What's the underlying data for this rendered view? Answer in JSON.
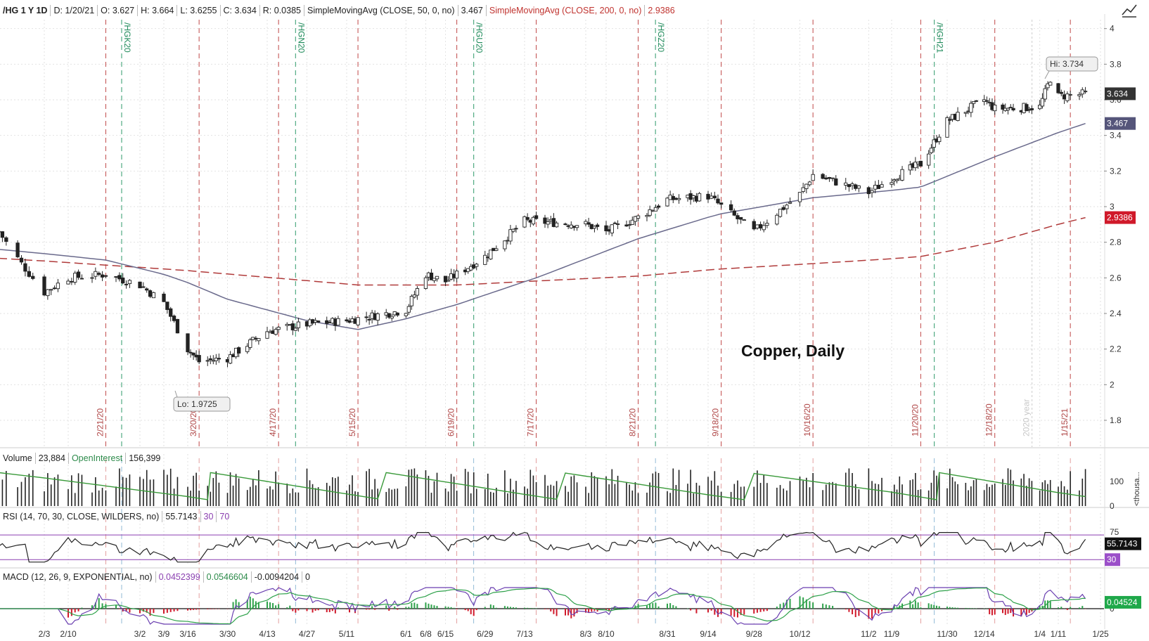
{
  "header": {
    "symbol": "/HG 1 Y 1D",
    "date": "D: 1/20/21",
    "open": "O: 3.627",
    "high": "H: 3.664",
    "low": "L: 3.6255",
    "close": "C: 3.634",
    "range": "R: 0.0385",
    "sma50_label": "SimpleMovingAvg (CLOSE, 50, 0, no)",
    "sma50_value": "3.467",
    "sma200_label": "SimpleMovingAvg (CLOSE, 200, 0, no)",
    "sma200_value": "2.9386"
  },
  "annotation": "Copper, Daily",
  "hi_label": "Hi: 3.734",
  "lo_label": "Lo: 1.9725",
  "year_label": "2020 year",
  "volume_header": {
    "name": "Volume",
    "value": "23,884",
    "oi_name": "OpenInterest",
    "oi_value": "156,399"
  },
  "rsi_header": {
    "name": "RSI (14, 70, 30, CLOSE, WILDERS, no)",
    "value": "55.7143",
    "low": "30",
    "high": "70"
  },
  "macd_header": {
    "name": "MACD (12, 26, 9, EXPONENTIAL, no)",
    "v1": "0.0452399",
    "v2": "0.0546604",
    "v3": "-0.0094204",
    "v4": "0"
  },
  "volume_axis_title": "<thousa...",
  "colors": {
    "up": "#ffffff",
    "down": "#222222",
    "sma50": "#6a6a8c",
    "sma200": "#b03a3a",
    "price_tag": "#333333",
    "sma200_tag": "#d0192a",
    "oi": "#3a9a3a",
    "rsi_line": "#222222",
    "rsi_band": "#8a3fb0",
    "macd_value": "#6a3fb0",
    "macd_avg": "#2ea14a",
    "hist_pos": "#2ea14a",
    "hist_neg": "#d0192a"
  },
  "chart_data": {
    "type": "candlestick",
    "x_ticks": [
      "2/3",
      "2/10",
      "3/2",
      "3/9",
      "3/16",
      "3/30",
      "4/13",
      "4/27",
      "5/11",
      "6/1",
      "6/8",
      "6/15",
      "6/29",
      "7/13",
      "8/3",
      "8/10",
      "8/31",
      "9/14",
      "9/28",
      "10/12",
      "11/2",
      "11/9",
      "11/30",
      "12/14",
      "1/4",
      "1/11",
      "1/25"
    ],
    "y_ticks": [
      "1.8",
      "2",
      "2.2",
      "2.4",
      "2.6",
      "2.8",
      "3",
      "3.2",
      "3.4",
      "3.6",
      "3.8",
      "4"
    ],
    "ylim": [
      1.65,
      4.05
    ],
    "event_lines_red": [
      "2/21/20",
      "3/20/20",
      "4/17/20",
      "5/15/20",
      "6/19/20",
      "7/17/20",
      "8/21/20",
      "9/18/20",
      "10/16/20",
      "11/20/20",
      "12/18/20",
      "1/15/21"
    ],
    "event_lines_green": [
      "/HGK20",
      "/HGN20",
      "/HGU20",
      "/HGZ20",
      "/HGH21"
    ],
    "price_close_waypoints": [
      [
        "1/22",
        2.86
      ],
      [
        "1/28",
        2.68
      ],
      [
        "2/3",
        2.52
      ],
      [
        "2/10",
        2.6
      ],
      [
        "2/21",
        2.62
      ],
      [
        "3/2",
        2.56
      ],
      [
        "3/9",
        2.46
      ],
      [
        "3/16",
        2.2
      ],
      [
        "3/20",
        2.13
      ],
      [
        "3/30",
        2.15
      ],
      [
        "4/13",
        2.3
      ],
      [
        "4/27",
        2.34
      ],
      [
        "5/11",
        2.36
      ],
      [
        "6/1",
        2.42
      ],
      [
        "6/8",
        2.62
      ],
      [
        "6/15",
        2.58
      ],
      [
        "6/29",
        2.72
      ],
      [
        "7/13",
        2.92
      ],
      [
        "8/3",
        2.9
      ],
      [
        "8/10",
        2.86
      ],
      [
        "8/21",
        2.94
      ],
      [
        "8/31",
        3.04
      ],
      [
        "9/14",
        3.06
      ],
      [
        "9/28",
        2.86
      ],
      [
        "10/12",
        3.07
      ],
      [
        "10/16",
        3.18
      ],
      [
        "11/2",
        3.08
      ],
      [
        "11/9",
        3.16
      ],
      [
        "11/20",
        3.24
      ],
      [
        "11/30",
        3.48
      ],
      [
        "12/14",
        3.6
      ],
      [
        "12/18",
        3.55
      ],
      [
        "1/4",
        3.56
      ],
      [
        "1/8",
        3.72
      ],
      [
        "1/11",
        3.62
      ],
      [
        "1/20",
        3.634
      ]
    ],
    "sma50_waypoints": [
      [
        "1/22",
        2.76
      ],
      [
        "2/21",
        2.7
      ],
      [
        "3/9",
        2.62
      ],
      [
        "3/30",
        2.48
      ],
      [
        "4/27",
        2.36
      ],
      [
        "5/15",
        2.31
      ],
      [
        "6/1",
        2.37
      ],
      [
        "6/19",
        2.45
      ],
      [
        "7/17",
        2.6
      ],
      [
        "8/21",
        2.82
      ],
      [
        "9/18",
        2.96
      ],
      [
        "10/16",
        3.05
      ],
      [
        "11/20",
        3.11
      ],
      [
        "12/18",
        3.28
      ],
      [
        "1/20",
        3.467
      ]
    ],
    "sma200_waypoints": [
      [
        "1/22",
        2.71
      ],
      [
        "3/9",
        2.65
      ],
      [
        "5/15",
        2.56
      ],
      [
        "6/19",
        2.56
      ],
      [
        "8/21",
        2.61
      ],
      [
        "9/18",
        2.65
      ],
      [
        "10/16",
        2.68
      ],
      [
        "11/20",
        2.72
      ],
      [
        "12/18",
        2.8
      ],
      [
        "1/20",
        2.9386
      ]
    ],
    "hi": 3.734,
    "lo": 1.9725,
    "last_close": 3.634,
    "sma50_last": 3.467,
    "sma200_last": 2.9386,
    "volume_axis": [
      "100",
      "0"
    ],
    "rsi_axis": [
      "75",
      "30"
    ],
    "rsi_last": 55.7143,
    "macd_axis": [
      "0"
    ],
    "macd_last": 0.04524
  }
}
